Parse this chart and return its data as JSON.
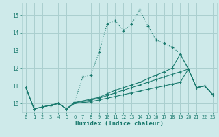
{
  "xlabel": "Humidex (Indice chaleur)",
  "bg_color": "#ceeaea",
  "line_color": "#1a7a6e",
  "grid_color": "#aacfcf",
  "xlim": [
    -0.5,
    23.5
  ],
  "ylim": [
    9.5,
    15.7
  ],
  "yticks": [
    10,
    11,
    12,
    13,
    14,
    15
  ],
  "xticks": [
    0,
    1,
    2,
    3,
    4,
    5,
    6,
    7,
    8,
    9,
    10,
    11,
    12,
    13,
    14,
    15,
    16,
    17,
    18,
    19,
    20,
    21,
    22,
    23
  ],
  "line1_x": [
    0,
    1,
    2,
    3,
    4,
    5,
    6,
    7,
    8,
    9,
    10,
    11,
    12,
    13,
    14,
    15,
    16,
    17,
    18,
    19,
    20,
    21,
    22,
    23
  ],
  "line1_y": [
    10.9,
    9.7,
    9.8,
    9.9,
    10.0,
    9.7,
    10.1,
    11.5,
    11.6,
    12.9,
    14.5,
    14.7,
    14.1,
    14.5,
    15.3,
    14.4,
    13.6,
    13.4,
    13.2,
    12.8,
    11.95,
    10.9,
    11.0,
    10.5
  ],
  "line2_x": [
    0,
    1,
    2,
    3,
    4,
    5,
    6,
    7,
    8,
    9,
    10,
    11,
    12,
    13,
    14,
    15,
    16,
    17,
    18,
    19,
    20,
    21,
    22,
    23
  ],
  "line2_y": [
    10.9,
    9.7,
    9.8,
    9.9,
    10.0,
    9.7,
    10.05,
    10.15,
    10.25,
    10.35,
    10.55,
    10.75,
    10.9,
    11.05,
    11.2,
    11.4,
    11.6,
    11.8,
    12.0,
    12.8,
    11.95,
    10.9,
    11.0,
    10.5
  ],
  "line3_x": [
    0,
    1,
    2,
    3,
    4,
    5,
    6,
    7,
    8,
    9,
    10,
    11,
    12,
    13,
    14,
    15,
    16,
    17,
    18,
    19,
    20,
    21,
    22,
    23
  ],
  "line3_y": [
    10.9,
    9.7,
    9.8,
    9.9,
    10.0,
    9.7,
    10.05,
    10.1,
    10.2,
    10.3,
    10.45,
    10.6,
    10.75,
    10.9,
    11.05,
    11.2,
    11.35,
    11.5,
    11.65,
    11.8,
    11.95,
    10.9,
    11.0,
    10.5
  ],
  "line4_x": [
    0,
    1,
    2,
    3,
    4,
    5,
    6,
    7,
    8,
    9,
    10,
    11,
    12,
    13,
    14,
    15,
    16,
    17,
    18,
    19,
    20,
    21,
    22,
    23
  ],
  "line4_y": [
    10.9,
    9.7,
    9.8,
    9.9,
    10.0,
    9.7,
    10.0,
    10.05,
    10.1,
    10.2,
    10.3,
    10.4,
    10.5,
    10.6,
    10.7,
    10.8,
    10.9,
    11.0,
    11.1,
    11.2,
    11.95,
    10.9,
    11.0,
    10.5
  ]
}
